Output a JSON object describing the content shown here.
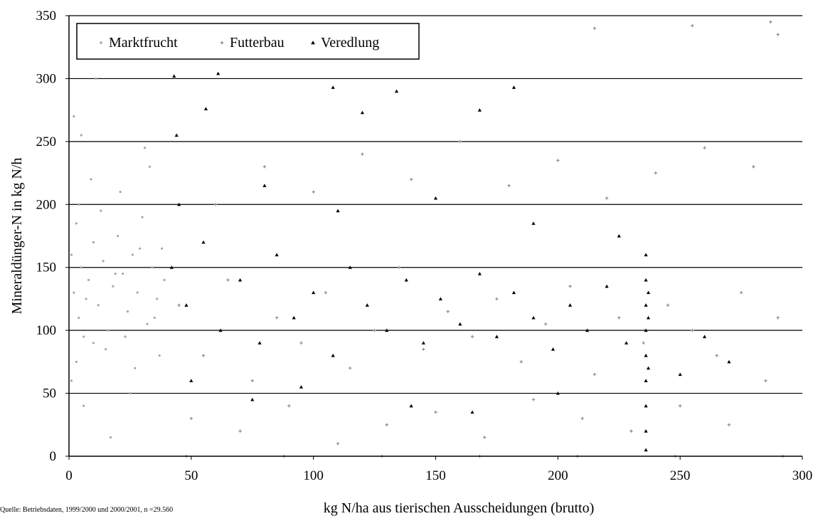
{
  "chart_data": {
    "type": "scatter",
    "title": "",
    "xlabel": "kg N/ha aus tierischen Ausscheidungen (brutto)",
    "ylabel": "Mineraldünger-N in kg N/h",
    "xlim": [
      0,
      300
    ],
    "ylim": [
      0,
      350
    ],
    "xticks": [
      "0",
      "50",
      "100",
      "150",
      "200",
      "250",
      "300"
    ],
    "yticks": [
      "0",
      "50",
      "100",
      "150",
      "200",
      "250",
      "300",
      "350"
    ],
    "grid": "horizontal",
    "legend_position": "top-left",
    "series": [
      {
        "name": "Marktfrucht",
        "marker": "dot",
        "color": "#a6a6a6",
        "points": [
          [
            1,
            160
          ],
          [
            2,
            130
          ],
          [
            3,
            185
          ],
          [
            4,
            110
          ],
          [
            5,
            150
          ],
          [
            6,
            95
          ],
          [
            8,
            140
          ],
          [
            10,
            170
          ],
          [
            12,
            120
          ],
          [
            14,
            155
          ],
          [
            16,
            100
          ],
          [
            18,
            135
          ],
          [
            20,
            175
          ],
          [
            22,
            145
          ],
          [
            24,
            115
          ],
          [
            26,
            160
          ],
          [
            28,
            130
          ],
          [
            30,
            190
          ],
          [
            32,
            105
          ],
          [
            34,
            150
          ],
          [
            36,
            125
          ],
          [
            38,
            165
          ],
          [
            1,
            60
          ],
          [
            3,
            75
          ],
          [
            6,
            40
          ],
          [
            9,
            220
          ],
          [
            15,
            85
          ],
          [
            21,
            210
          ],
          [
            27,
            70
          ],
          [
            33,
            230
          ],
          [
            2,
            270
          ],
          [
            5,
            255
          ],
          [
            11,
            300
          ],
          [
            17,
            15
          ],
          [
            25,
            50
          ],
          [
            31,
            245
          ],
          [
            37,
            80
          ],
          [
            13,
            195
          ],
          [
            7,
            125
          ],
          [
            19,
            145
          ],
          [
            23,
            95
          ],
          [
            29,
            165
          ],
          [
            35,
            110
          ],
          [
            39,
            140
          ],
          [
            4,
            200
          ],
          [
            10,
            90
          ]
        ]
      },
      {
        "name": "Futterbau",
        "marker": "plus",
        "color": "#8c8c8c",
        "points": [
          [
            45,
            120
          ],
          [
            55,
            80
          ],
          [
            65,
            140
          ],
          [
            75,
            60
          ],
          [
            85,
            110
          ],
          [
            95,
            90
          ],
          [
            105,
            130
          ],
          [
            115,
            70
          ],
          [
            125,
            100
          ],
          [
            135,
            150
          ],
          [
            145,
            85
          ],
          [
            155,
            115
          ],
          [
            165,
            95
          ],
          [
            175,
            125
          ],
          [
            185,
            75
          ],
          [
            195,
            105
          ],
          [
            205,
            135
          ],
          [
            215,
            65
          ],
          [
            225,
            110
          ],
          [
            235,
            90
          ],
          [
            245,
            120
          ],
          [
            255,
            100
          ],
          [
            265,
            80
          ],
          [
            275,
            130
          ],
          [
            285,
            60
          ],
          [
            290,
            110
          ],
          [
            50,
            30
          ],
          [
            70,
            20
          ],
          [
            90,
            40
          ],
          [
            110,
            10
          ],
          [
            130,
            25
          ],
          [
            150,
            35
          ],
          [
            170,
            15
          ],
          [
            190,
            45
          ],
          [
            210,
            30
          ],
          [
            230,
            20
          ],
          [
            250,
            40
          ],
          [
            270,
            25
          ],
          [
            60,
            200
          ],
          [
            80,
            230
          ],
          [
            100,
            210
          ],
          [
            120,
            240
          ],
          [
            140,
            220
          ],
          [
            160,
            250
          ],
          [
            180,
            215
          ],
          [
            200,
            235
          ],
          [
            220,
            205
          ],
          [
            240,
            225
          ],
          [
            260,
            245
          ],
          [
            280,
            230
          ],
          [
            215,
            340
          ],
          [
            255,
            342
          ],
          [
            287,
            345
          ],
          [
            290,
            335
          ],
          [
            48,
            0
          ],
          [
            88,
            0
          ],
          [
            128,
            0
          ],
          [
            168,
            0
          ],
          [
            208,
            0
          ],
          [
            248,
            0
          ],
          [
            292,
            0
          ]
        ]
      },
      {
        "name": "Veredlung",
        "marker": "triangle",
        "color": "#000000",
        "points": [
          [
            42,
            150
          ],
          [
            48,
            120
          ],
          [
            55,
            170
          ],
          [
            62,
            100
          ],
          [
            70,
            140
          ],
          [
            78,
            90
          ],
          [
            85,
            160
          ],
          [
            92,
            110
          ],
          [
            100,
            130
          ],
          [
            108,
            80
          ],
          [
            115,
            150
          ],
          [
            122,
            120
          ],
          [
            130,
            100
          ],
          [
            138,
            140
          ],
          [
            145,
            90
          ],
          [
            152,
            125
          ],
          [
            160,
            105
          ],
          [
            168,
            145
          ],
          [
            175,
            95
          ],
          [
            182,
            130
          ],
          [
            190,
            110
          ],
          [
            198,
            85
          ],
          [
            205,
            120
          ],
          [
            212,
            100
          ],
          [
            220,
            135
          ],
          [
            228,
            90
          ],
          [
            236,
            60
          ],
          [
            236,
            80
          ],
          [
            236,
            100
          ],
          [
            236,
            120
          ],
          [
            236,
            140
          ],
          [
            236,
            160
          ],
          [
            237,
            70
          ],
          [
            237,
            110
          ],
          [
            237,
            130
          ],
          [
            236,
            40
          ],
          [
            236,
            20
          ],
          [
            236,
            5
          ],
          [
            44,
            255
          ],
          [
            61,
            304
          ],
          [
            108,
            293
          ],
          [
            134,
            290
          ],
          [
            182,
            293
          ],
          [
            43,
            302
          ],
          [
            56,
            276
          ],
          [
            120,
            273
          ],
          [
            168,
            275
          ],
          [
            50,
            60
          ],
          [
            75,
            45
          ],
          [
            95,
            55
          ],
          [
            140,
            40
          ],
          [
            165,
            35
          ],
          [
            200,
            50
          ],
          [
            250,
            65
          ],
          [
            260,
            95
          ],
          [
            270,
            75
          ],
          [
            45,
            200
          ],
          [
            80,
            215
          ],
          [
            110,
            195
          ],
          [
            150,
            205
          ],
          [
            190,
            185
          ],
          [
            225,
            175
          ]
        ]
      }
    ]
  },
  "source_note": "Quelle: Betriebsdaten, 1999/2000 und 2000/2001, n =29.560"
}
